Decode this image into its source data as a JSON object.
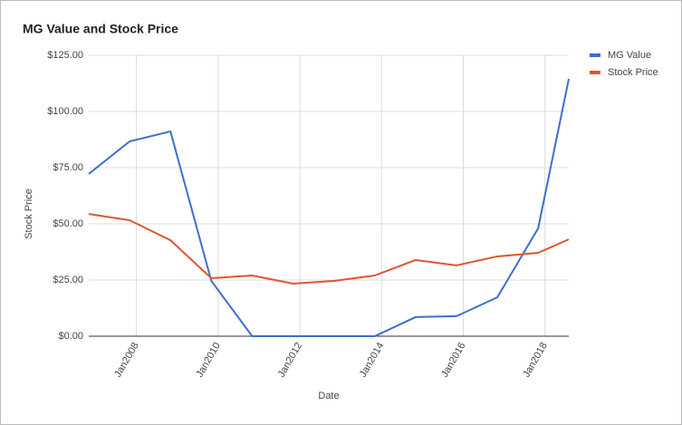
{
  "chart_data": {
    "type": "line",
    "title": "MG Value and Stock Price",
    "x_label": "Date",
    "y_label": "Stock Price",
    "x": [
      "2006-11",
      "2007-11",
      "2008-11",
      "2009-11",
      "2010-11",
      "2011-11",
      "2012-11",
      "2013-11",
      "2014-11",
      "2015-11",
      "2016-11",
      "2017-11",
      "2018-08"
    ],
    "series": [
      {
        "name": "MG Value",
        "color": "#3c6fce",
        "values": [
          72.2,
          86.7,
          91.1,
          24.6,
          0,
          0,
          0,
          0,
          8.5,
          8.9,
          17.3,
          48,
          114.5
        ]
      },
      {
        "name": "Stock Price",
        "color": "#e0552f",
        "values": [
          54.4,
          51.6,
          42.7,
          25.8,
          27,
          23.4,
          24.6,
          27,
          33.9,
          31.5,
          35.5,
          37.1,
          43.1
        ]
      }
    ],
    "xlim": [
      "2006-11",
      "2018-08"
    ],
    "xticks": [
      {
        "value": "2008-01",
        "label": "Jan2008"
      },
      {
        "value": "2010-01",
        "label": "Jan2010"
      },
      {
        "value": "2012-01",
        "label": "Jan2012"
      },
      {
        "value": "2014-01",
        "label": "Jan2014"
      },
      {
        "value": "2016-01",
        "label": "Jan2016"
      },
      {
        "value": "2018-01",
        "label": "Jan2018"
      }
    ],
    "ylim": [
      0,
      125
    ],
    "yticks": [
      {
        "value": 0,
        "label": "$0.00"
      },
      {
        "value": 25,
        "label": "$25.00"
      },
      {
        "value": 50,
        "label": "$50.00"
      },
      {
        "value": 75,
        "label": "$75.00"
      },
      {
        "value": 100,
        "label": "$100.00"
      },
      {
        "value": 125,
        "label": "$125.00"
      }
    ],
    "grid": true,
    "legend": "right"
  }
}
